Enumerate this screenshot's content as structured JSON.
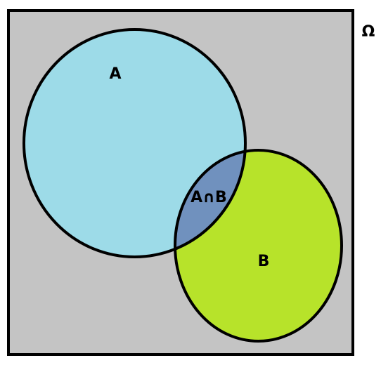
{
  "diagram": {
    "type": "venn",
    "universe_label": "Ω",
    "set_a_label": "A",
    "set_b_label": "B",
    "intersection_label": "A∩B"
  },
  "colors": {
    "universe_fill": "#c4c4c4",
    "set_a_fill": "#9ddbe8",
    "set_b_fill": "#b7e32a",
    "intersection_fill": "#7091be",
    "stroke": "#000000"
  }
}
